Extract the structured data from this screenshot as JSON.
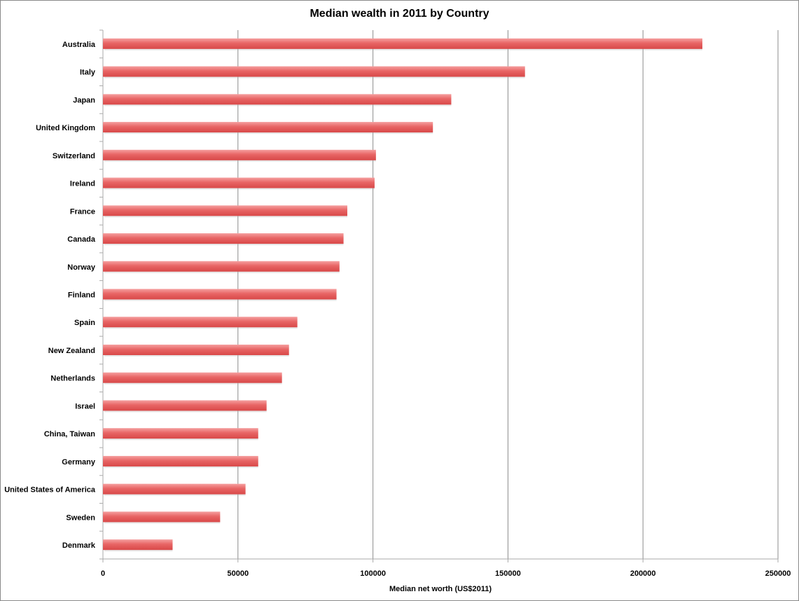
{
  "chart_data": {
    "type": "bar",
    "orientation": "horizontal",
    "title": "Median wealth in 2011 by Country",
    "xlabel": "Median net worth (US$2011)",
    "ylabel": "",
    "xlim": [
      0,
      250000
    ],
    "xticks": [
      "0",
      "50000",
      "100000",
      "150000",
      "200000",
      "250000"
    ],
    "grid": "vertical",
    "bar_color": "#e05555",
    "categories": [
      "Australia",
      "Italy",
      "Japan",
      "United Kingdom",
      "Switzerland",
      "Ireland",
      "France",
      "Canada",
      "Norway",
      "Finland",
      "Spain",
      "New Zealand",
      "Netherlands",
      "Israel",
      "China, Taiwan",
      "Germany",
      "United States of America",
      "Sweden",
      "Denmark"
    ],
    "values": [
      222000,
      156300,
      129000,
      122200,
      101100,
      100600,
      90500,
      89100,
      87600,
      86500,
      72000,
      68900,
      66300,
      60600,
      57500,
      57500,
      52800,
      43400,
      25800
    ]
  }
}
